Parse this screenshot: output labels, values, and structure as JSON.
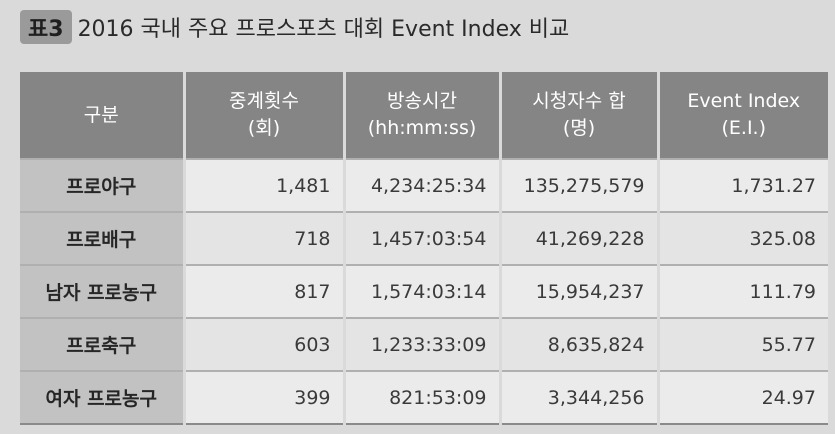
{
  "caption": {
    "tag": "표3",
    "title": "2016 국내 주요 프로스포츠 대회 Event Index 비교"
  },
  "headers": [
    {
      "line1": "구분",
      "line2": ""
    },
    {
      "line1": "중계횟수",
      "line2": "(회)"
    },
    {
      "line1": "방송시간",
      "line2": "(hh:mm:ss)"
    },
    {
      "line1": "시청자수 합",
      "line2": "(명)"
    },
    {
      "line1": "Event Index",
      "line2": "(E.I.)"
    }
  ],
  "rows": [
    {
      "category": "프로야구",
      "broadcasts": "1,481",
      "airtime": "4,234:25:34",
      "viewers": "135,275,579",
      "event_index": "1,731.27"
    },
    {
      "category": "프로배구",
      "broadcasts": "718",
      "airtime": "1,457:03:54",
      "viewers": "41,269,228",
      "event_index": "325.08"
    },
    {
      "category": "남자 프로농구",
      "broadcasts": "817",
      "airtime": "1,574:03:14",
      "viewers": "15,954,237",
      "event_index": "111.79"
    },
    {
      "category": "프로축구",
      "broadcasts": "603",
      "airtime": "1,233:33:09",
      "viewers": "8,635,824",
      "event_index": "55.77"
    },
    {
      "category": "여자 프로농구",
      "broadcasts": "399",
      "airtime": "821:53:09",
      "viewers": "3,344,256",
      "event_index": "24.97"
    }
  ]
}
